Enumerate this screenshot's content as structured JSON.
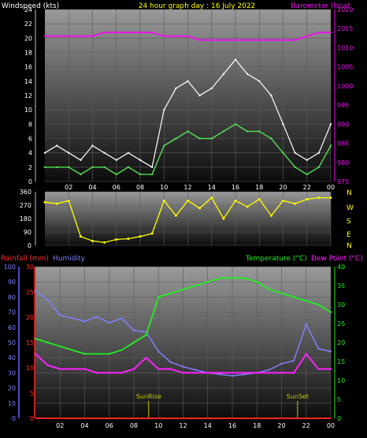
{
  "chart_data": [
    {
      "type": "line",
      "panel": "wind-barometer",
      "title": "24 hour graph day : 16 July 2022",
      "ylabel_left": "Windspeed (kts)",
      "ylabel_right": "Barometer (hpa)",
      "x_ticks": [
        "02",
        "04",
        "06",
        "08",
        "10",
        "12",
        "14",
        "16",
        "18",
        "20",
        "22",
        "00"
      ],
      "ylim_left": [
        0,
        24
      ],
      "y_ticks_left": [
        0,
        2,
        4,
        6,
        8,
        10,
        12,
        14,
        16,
        18,
        20,
        22,
        24
      ],
      "ylim_right": [
        975,
        1020
      ],
      "y_ticks_right": [
        975,
        980,
        985,
        990,
        995,
        1000,
        1005,
        1010,
        1015,
        1020
      ],
      "x_hours": [
        0,
        1,
        2,
        3,
        4,
        5,
        6,
        7,
        8,
        9,
        10,
        11,
        12,
        13,
        14,
        15,
        16,
        17,
        18,
        19,
        20,
        21,
        22,
        23,
        24
      ],
      "gust_kts": [
        4,
        5,
        4,
        3,
        5,
        4,
        3,
        4,
        3,
        2,
        10,
        13,
        14,
        12,
        13,
        15,
        17,
        15,
        14,
        12,
        8,
        4,
        3,
        4,
        8
      ],
      "avg_kts": [
        2,
        2,
        2,
        1,
        2,
        2,
        1,
        2,
        1,
        1,
        5,
        6,
        7,
        6,
        6,
        7,
        8,
        7,
        7,
        6,
        4,
        2,
        1,
        2,
        5
      ],
      "barometer_hpa": [
        1013,
        1013,
        1013,
        1013,
        1013,
        1014,
        1014,
        1014,
        1014,
        1014,
        1013,
        1013,
        1013,
        1012,
        1012,
        1012,
        1012,
        1012,
        1012,
        1012,
        1012,
        1012,
        1013,
        1014,
        1014
      ],
      "colors": {
        "gust": "#ffffff",
        "avg": "#55e055",
        "barometer": "#ee11ee",
        "title": "#ffff00"
      }
    },
    {
      "type": "line",
      "panel": "wind-direction",
      "y_ticks": [
        0,
        90,
        180,
        270,
        360
      ],
      "ylim": [
        0,
        360
      ],
      "compass_labels": [
        "N",
        "W",
        "S",
        "E",
        "N"
      ],
      "x_hours": [
        0,
        1,
        2,
        3,
        4,
        5,
        6,
        7,
        8,
        9,
        10,
        11,
        12,
        13,
        14,
        15,
        16,
        17,
        18,
        19,
        20,
        21,
        22,
        23,
        24
      ],
      "direction_deg": [
        290,
        280,
        300,
        60,
        30,
        20,
        40,
        45,
        60,
        80,
        300,
        200,
        300,
        250,
        320,
        180,
        300,
        260,
        310,
        200,
        300,
        280,
        310,
        320,
        320
      ],
      "color": "#ffff00"
    },
    {
      "type": "line",
      "panel": "temperature-humidity",
      "ylabel_left_rain": "Rainfall (mm)",
      "ylabel_left_humidity": "Humidity",
      "ylabel_right_temp": "Temperature (°C)",
      "ylabel_right_dew": "Dew Point (°C)",
      "x_ticks": [
        "02",
        "04",
        "06",
        "08",
        "10",
        "12",
        "14",
        "16",
        "18",
        "20",
        "22",
        "00"
      ],
      "ylim_humidity": [
        0,
        100
      ],
      "y_ticks_humidity": [
        0,
        10,
        20,
        30,
        40,
        50,
        60,
        70,
        80,
        90,
        100
      ],
      "ylim_rain": [
        0,
        30
      ],
      "y_ticks_rain": [
        0,
        5,
        10,
        15,
        20,
        25,
        30
      ],
      "ylim_temp": [
        0,
        40
      ],
      "y_ticks_temp": [
        0,
        5,
        10,
        15,
        20,
        25,
        30,
        35,
        40
      ],
      "annotations": [
        {
          "text": "SunRise",
          "hour": 9.2
        },
        {
          "text": "SunSet",
          "hour": 21.3
        }
      ],
      "x_hours": [
        0,
        1,
        2,
        3,
        4,
        5,
        6,
        7,
        8,
        9,
        10,
        11,
        12,
        13,
        14,
        15,
        16,
        17,
        18,
        19,
        20,
        21,
        22,
        23,
        24
      ],
      "humidity_pct": [
        84,
        78,
        68,
        66,
        64,
        67,
        63,
        66,
        58,
        57,
        44,
        37,
        34,
        32,
        30,
        29,
        28,
        29,
        30,
        32,
        36,
        38,
        62,
        46,
        44
      ],
      "temperature_c": [
        21,
        20,
        19,
        18,
        17,
        17,
        17,
        18,
        20,
        22,
        32,
        33,
        34,
        35,
        36,
        37,
        37,
        37,
        36,
        34,
        33,
        32,
        31,
        30,
        28
      ],
      "dewpoint_c": [
        17,
        14,
        13,
        13,
        13,
        12,
        12,
        12,
        13,
        16,
        13,
        13,
        12,
        12,
        12,
        12,
        12,
        12,
        12,
        12,
        12,
        12,
        17,
        13,
        13
      ],
      "rainfall_mm": [
        0,
        0,
        0,
        0,
        0,
        0,
        0,
        0,
        0,
        0,
        0,
        0,
        0,
        0,
        0,
        0,
        0,
        0,
        0,
        0,
        0,
        0,
        0,
        0,
        0
      ],
      "colors": {
        "humidity": "#8080ff",
        "temperature": "#22ee22",
        "dewpoint": "#ff22ff",
        "rainfall": "#ff2020",
        "sun": "#c8c800"
      }
    }
  ]
}
